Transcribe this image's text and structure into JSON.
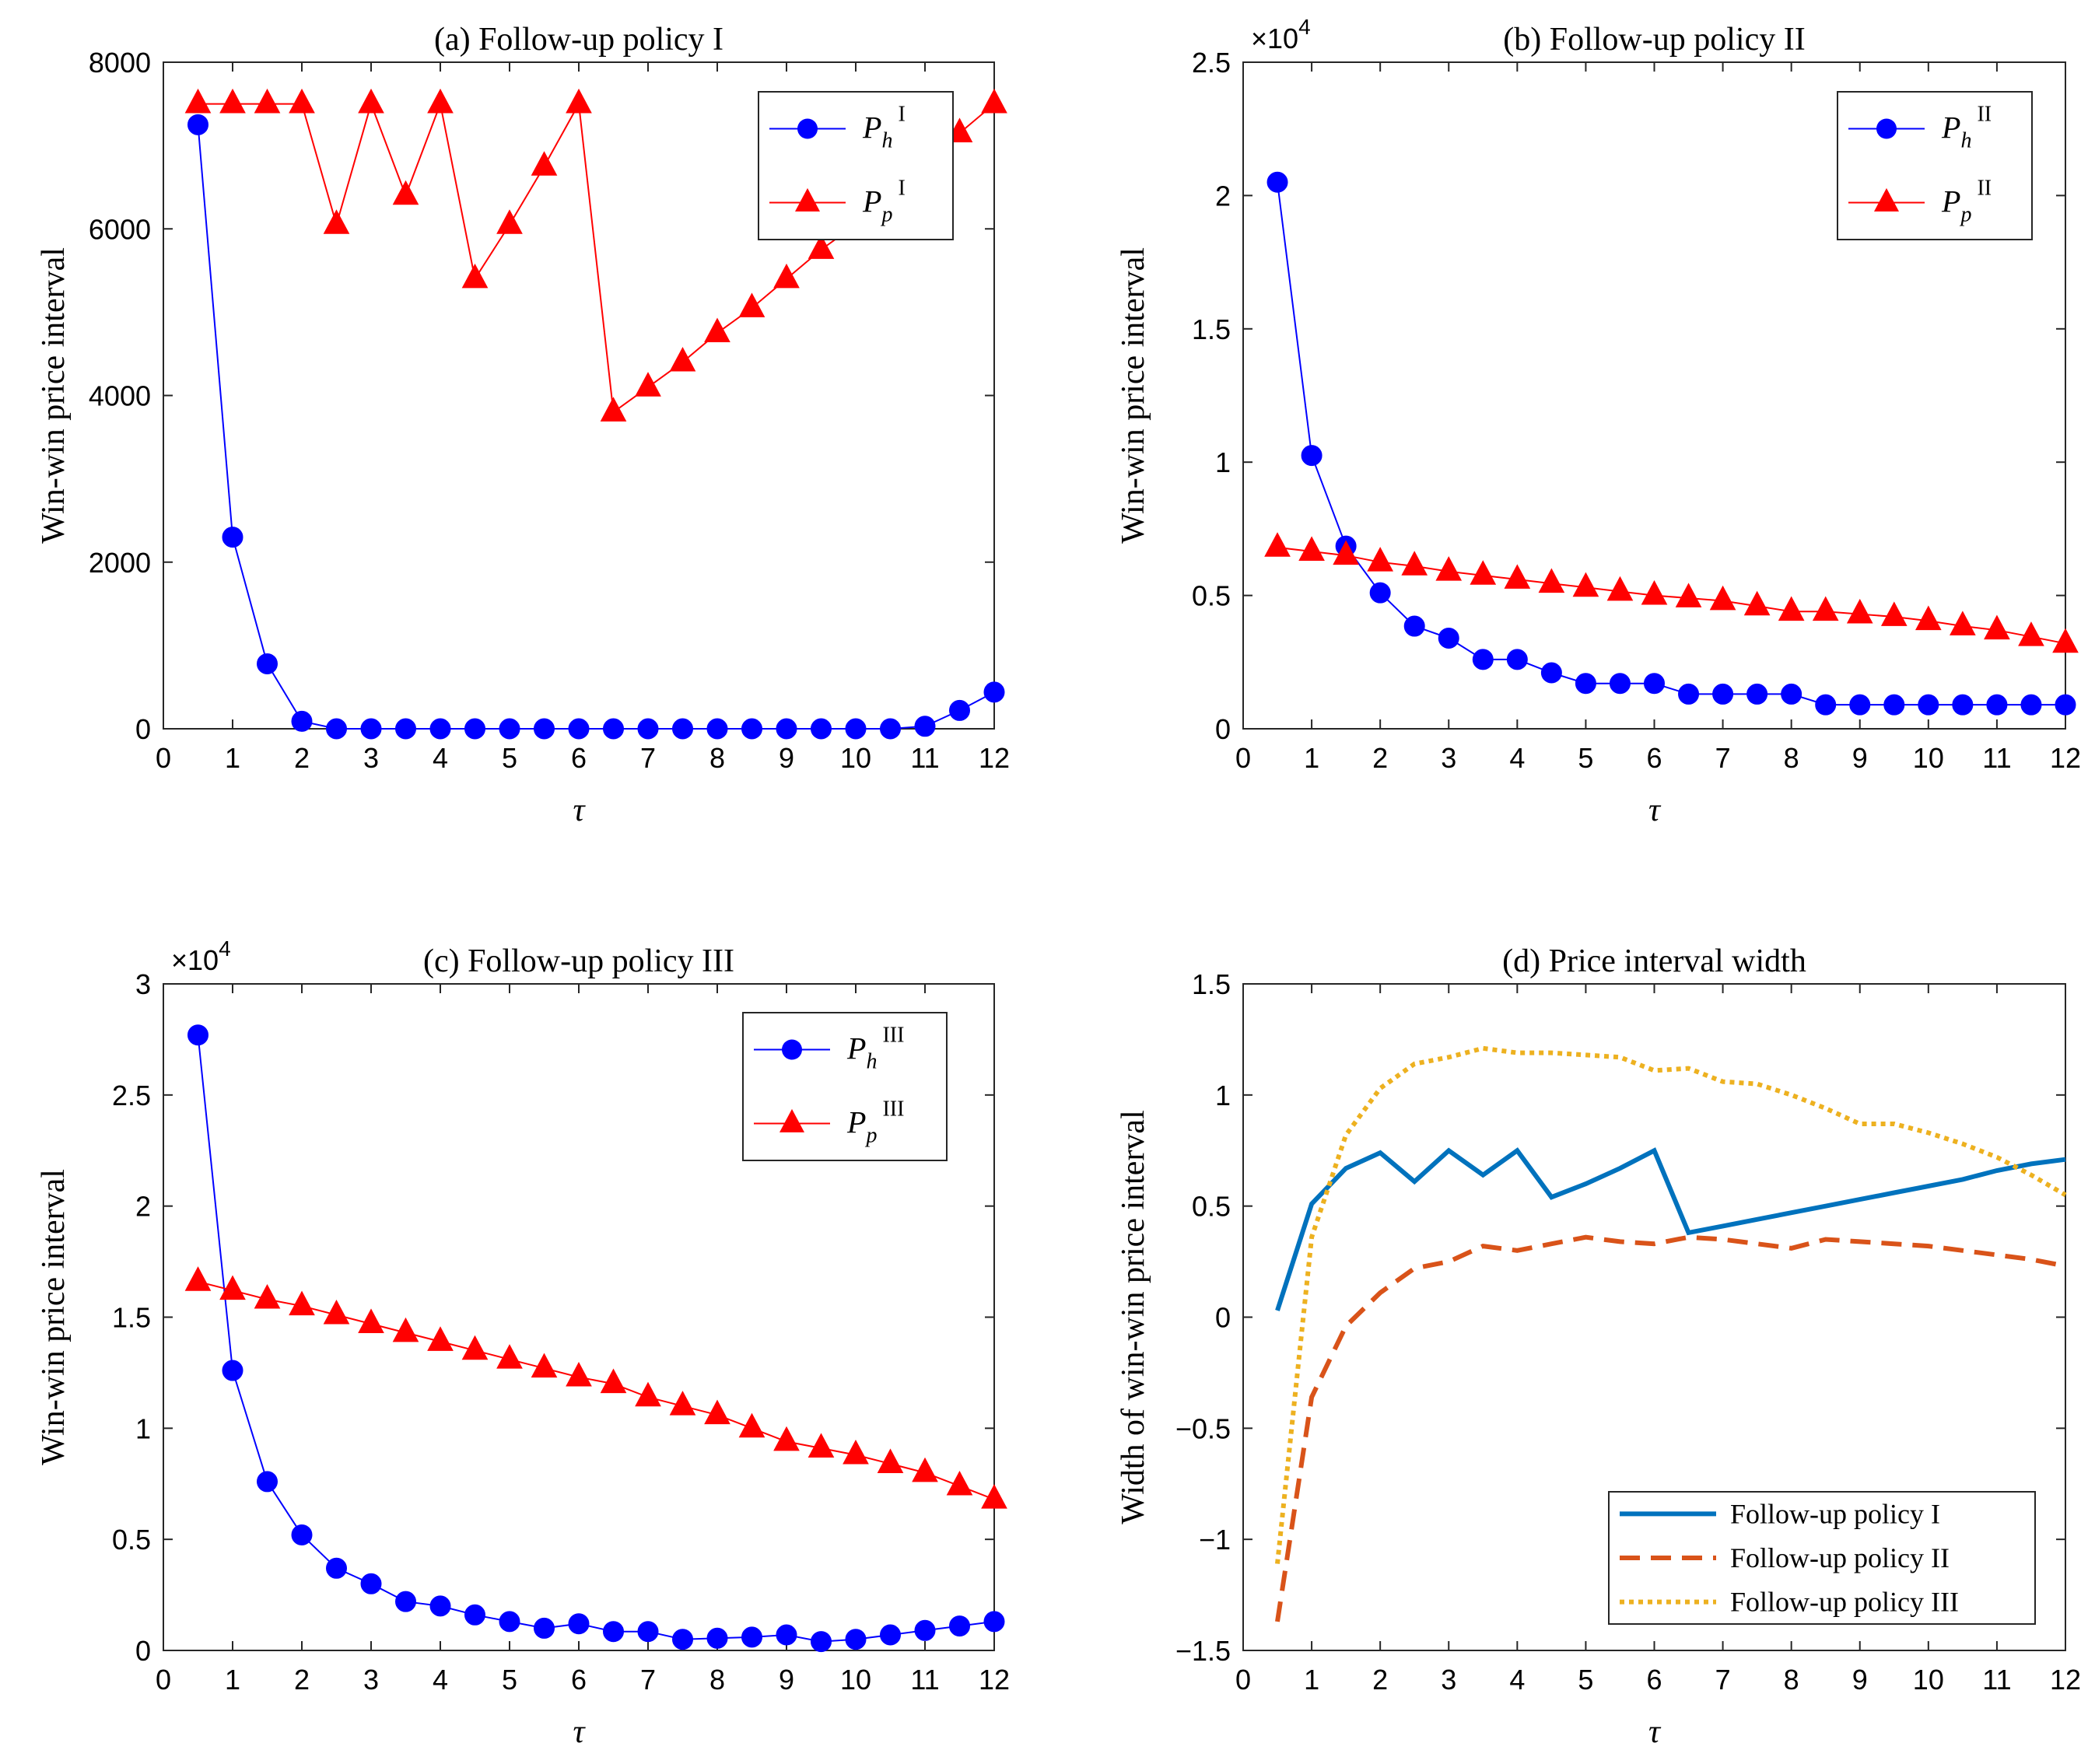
{
  "chart_data": [
    {
      "type": "line",
      "title": "(a) Follow-up policy I",
      "xlabel": "τ",
      "ylabel": "Win-win price interval",
      "xlim": [
        0,
        12
      ],
      "ylim": [
        0,
        8000
      ],
      "xticks": [
        0,
        1,
        2,
        3,
        4,
        5,
        6,
        7,
        8,
        9,
        10,
        11,
        12
      ],
      "yticks": [
        0,
        2000,
        4000,
        6000,
        8000
      ],
      "ytick_labels": [
        "0",
        "2000",
        "4000",
        "6000",
        "8000"
      ],
      "exponent": "",
      "legend_position": "top-right",
      "x": [
        0.5,
        1,
        1.5,
        2,
        2.5,
        3,
        3.5,
        4,
        4.5,
        5,
        5.5,
        6,
        6.5,
        7,
        7.5,
        8,
        8.5,
        9,
        9.5,
        10,
        10.5,
        11,
        11.5,
        12
      ],
      "series": [
        {
          "name": "P_h^I",
          "main": "P",
          "sub": "h",
          "sup": "I",
          "color": "#0000FF",
          "marker": "circle",
          "values": [
            7250,
            2300,
            780,
            90,
            0,
            0,
            0,
            0,
            0,
            0,
            0,
            0,
            0,
            0,
            0,
            0,
            0,
            0,
            0,
            0,
            0,
            30,
            220,
            440
          ]
        },
        {
          "name": "P_p^I",
          "main": "P",
          "sub": "p",
          "sup": "I",
          "color": "#FF0000",
          "marker": "triangle",
          "values": [
            7500,
            7500,
            7500,
            7500,
            6050,
            7500,
            6400,
            7500,
            5400,
            6050,
            6750,
            7500,
            3800,
            4100,
            4400,
            4750,
            5050,
            5400,
            5750,
            6050,
            6400,
            6750,
            7150,
            7500
          ]
        }
      ]
    },
    {
      "type": "line",
      "title": "(b) Follow-up policy II",
      "xlabel": "τ",
      "ylabel": "Win-win price interval",
      "xlim": [
        0,
        12
      ],
      "ylim": [
        0,
        2.5
      ],
      "xticks": [
        0,
        1,
        2,
        3,
        4,
        5,
        6,
        7,
        8,
        9,
        10,
        11,
        12
      ],
      "yticks": [
        0,
        0.5,
        1,
        1.5,
        2,
        2.5
      ],
      "ytick_labels": [
        "0",
        "0.5",
        "1",
        "1.5",
        "2",
        "2.5"
      ],
      "exponent": "×10",
      "exponent_power": "4",
      "legend_position": "top-right",
      "x": [
        0.5,
        1,
        1.5,
        2,
        2.5,
        3,
        3.5,
        4,
        4.5,
        5,
        5.5,
        6,
        6.5,
        7,
        7.5,
        8,
        8.5,
        9,
        9.5,
        10,
        10.5,
        11,
        11.5,
        12
      ],
      "series": [
        {
          "name": "P_h^II",
          "main": "P",
          "sub": "h",
          "sup": "II",
          "color": "#0000FF",
          "marker": "circle",
          "values": [
            2.05,
            1.025,
            0.685,
            0.51,
            0.385,
            0.34,
            0.26,
            0.26,
            0.21,
            0.17,
            0.17,
            0.17,
            0.13,
            0.13,
            0.13,
            0.13,
            0.09,
            0.09,
            0.09,
            0.09,
            0.09,
            0.09,
            0.09,
            0.09
          ]
        },
        {
          "name": "P_p^II",
          "main": "P",
          "sub": "p",
          "sup": "II",
          "color": "#FF0000",
          "marker": "triangle",
          "values": [
            0.68,
            0.665,
            0.65,
            0.625,
            0.61,
            0.59,
            0.575,
            0.56,
            0.545,
            0.53,
            0.515,
            0.5,
            0.49,
            0.48,
            0.46,
            0.44,
            0.44,
            0.43,
            0.42,
            0.405,
            0.385,
            0.37,
            0.345,
            0.32
          ]
        }
      ]
    },
    {
      "type": "line",
      "title": "(c) Follow-up policy III",
      "xlabel": "τ",
      "ylabel": "Win-win price interval",
      "xlim": [
        0,
        12
      ],
      "ylim": [
        0,
        3
      ],
      "xticks": [
        0,
        1,
        2,
        3,
        4,
        5,
        6,
        7,
        8,
        9,
        10,
        11,
        12
      ],
      "yticks": [
        0,
        0.5,
        1,
        1.5,
        2,
        2.5,
        3
      ],
      "ytick_labels": [
        "0",
        "0.5",
        "1",
        "1.5",
        "2",
        "2.5",
        "3"
      ],
      "exponent": "×10",
      "exponent_power": "4",
      "legend_position": "top-right",
      "x": [
        0.5,
        1,
        1.5,
        2,
        2.5,
        3,
        3.5,
        4,
        4.5,
        5,
        5.5,
        6,
        6.5,
        7,
        7.5,
        8,
        8.5,
        9,
        9.5,
        10,
        10.5,
        11,
        11.5,
        12
      ],
      "series": [
        {
          "name": "P_h^III",
          "main": "P",
          "sub": "h",
          "sup": "III",
          "color": "#0000FF",
          "marker": "circle",
          "values": [
            2.77,
            1.26,
            0.76,
            0.52,
            0.37,
            0.3,
            0.22,
            0.2,
            0.16,
            0.13,
            0.1,
            0.12,
            0.085,
            0.085,
            0.05,
            0.055,
            0.06,
            0.07,
            0.04,
            0.05,
            0.07,
            0.09,
            0.11,
            0.13
          ]
        },
        {
          "name": "P_p^III",
          "main": "P",
          "sub": "p",
          "sup": "III",
          "color": "#FF0000",
          "marker": "triangle",
          "values": [
            1.66,
            1.62,
            1.58,
            1.55,
            1.51,
            1.47,
            1.43,
            1.39,
            1.35,
            1.31,
            1.27,
            1.23,
            1.2,
            1.14,
            1.1,
            1.06,
            1.0,
            0.94,
            0.91,
            0.88,
            0.84,
            0.8,
            0.74,
            0.68
          ]
        }
      ]
    },
    {
      "type": "line",
      "title": "(d) Price interval width",
      "xlabel": "τ",
      "ylabel": "Width of win-win price interval",
      "xlim": [
        0,
        12
      ],
      "ylim": [
        -1.5,
        1.5
      ],
      "xticks": [
        0,
        1,
        2,
        3,
        4,
        5,
        6,
        7,
        8,
        9,
        10,
        11,
        12
      ],
      "yticks": [
        -1.5,
        -1,
        -0.5,
        0,
        0.5,
        1,
        1.5
      ],
      "ytick_labels": [
        "−1.5",
        "−1",
        "−0.5",
        "0",
        "0.5",
        "1",
        "1.5"
      ],
      "exponent": "",
      "legend_position": "bottom-right",
      "x": [
        0.5,
        1,
        1.5,
        2,
        2.5,
        3,
        3.5,
        4,
        4.5,
        5,
        5.5,
        6,
        6.5,
        7,
        7.5,
        8,
        8.5,
        9,
        9.5,
        10,
        10.5,
        11,
        11.5,
        12
      ],
      "series": [
        {
          "name": "Follow-up policy I",
          "color": "#0072BD",
          "dash": "solid",
          "values": [
            0.03,
            0.51,
            0.67,
            0.74,
            0.61,
            0.75,
            0.64,
            0.75,
            0.54,
            0.6,
            0.67,
            0.75,
            0.38,
            0.41,
            0.44,
            0.47,
            0.5,
            0.53,
            0.56,
            0.59,
            0.62,
            0.66,
            0.69,
            0.71
          ]
        },
        {
          "name": "Follow-up policy II",
          "color": "#D95319",
          "dash": "dashed",
          "values": [
            -1.37,
            -0.36,
            -0.04,
            0.11,
            0.22,
            0.25,
            0.32,
            0.3,
            0.33,
            0.36,
            0.34,
            0.33,
            0.36,
            0.35,
            0.33,
            0.31,
            0.35,
            0.34,
            0.33,
            0.32,
            0.3,
            0.28,
            0.26,
            0.23
          ]
        },
        {
          "name": "Follow-up policy III",
          "color": "#EDB120",
          "dash": "dotted",
          "values": [
            -1.11,
            0.36,
            0.82,
            1.03,
            1.14,
            1.17,
            1.21,
            1.19,
            1.19,
            1.18,
            1.17,
            1.11,
            1.12,
            1.06,
            1.05,
            1.0,
            0.94,
            0.87,
            0.87,
            0.83,
            0.78,
            0.72,
            0.64,
            0.55
          ]
        }
      ]
    }
  ]
}
